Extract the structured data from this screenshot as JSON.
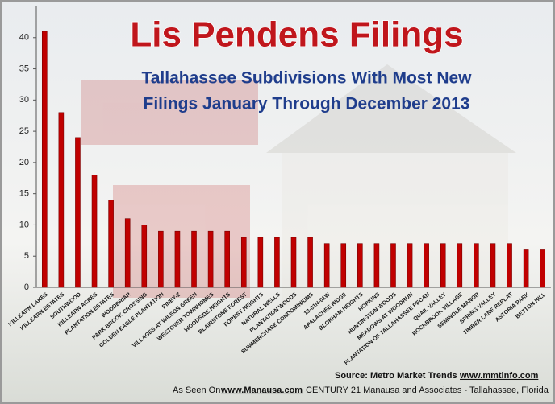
{
  "chart_data": {
    "type": "bar",
    "title": "Lis Pendens Filings",
    "subtitle": [
      "Tallahassee Subdivisions With Most New",
      "Filings January Through December 2013"
    ],
    "categories": [
      "KILLEARN LAKES",
      "KILLEARN ESTATES",
      "SOUTHWOOD",
      "KILLEARN ACRES",
      "PLANTATION ESTATES",
      "WOODBRIAR",
      "PARK BROOK CROSSING",
      "GOLDEN EAGLE PLANTATION",
      "PINEY-Z",
      "VILLAGES AT WILSON GREEN",
      "WESTOVER TOWNHOMES",
      "WOODSIDE HEIGHTS",
      "BLAIRSTONE FOREST",
      "FOREST HEIGHTS",
      "NATURAL WELLS",
      "PLANTATION WOODS",
      "SUMMERCHASE CONDOMINIUMS",
      "13-01N-01W",
      "APALACHEE RIDGE",
      "BLOKHAM HEIGHTS",
      "HOPKINS",
      "HUNTINGTON WOODS",
      "MEADOWS AT WOODRUN",
      "PLANTATION OF TALLAHASSEE PECAN",
      "QUAIL VALLEY",
      "ROCKBROOK VILLAGE",
      "SEMINOLE MANOR",
      "SPRING VALLEY",
      "TIMBER LANE REPLAT",
      "ASTORIA PARK",
      "BETTON HILL"
    ],
    "values": [
      41,
      28,
      24,
      18,
      14,
      11,
      10,
      9,
      9,
      9,
      9,
      9,
      8,
      8,
      8,
      8,
      8,
      7,
      7,
      7,
      7,
      7,
      7,
      7,
      7,
      7,
      7,
      7,
      7,
      6,
      6
    ],
    "color": "#c00000",
    "ylim": [
      0,
      45
    ],
    "yticks": [
      0,
      5,
      10,
      15,
      20,
      25,
      30,
      35,
      40
    ],
    "grid": false,
    "source": [
      "Source: Metro Market Trends",
      "www.mmtinfo.com"
    ],
    "footer": [
      "As Seen On",
      "www.Manausa.com",
      "CENTURY 21 Manausa and Associates - Tallahassee, Florida"
    ]
  }
}
